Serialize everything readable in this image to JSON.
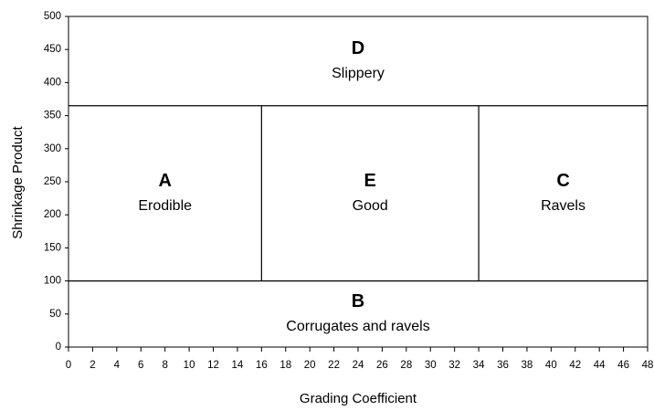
{
  "chart_data": {
    "type": "zones",
    "xlabel": "Grading Coefficient",
    "ylabel": "Shrinkage Product",
    "xlim": [
      0,
      48
    ],
    "ylim": [
      0,
      500
    ],
    "xticks": [
      0,
      2,
      4,
      6,
      8,
      10,
      12,
      14,
      16,
      18,
      20,
      22,
      24,
      26,
      28,
      30,
      32,
      34,
      36,
      38,
      40,
      42,
      44,
      46,
      48
    ],
    "yticks": [
      0,
      50,
      100,
      150,
      200,
      250,
      300,
      350,
      400,
      450,
      500
    ],
    "lines": [
      {
        "x": [
          0,
          48
        ],
        "y": [
          365,
          365
        ]
      },
      {
        "x": [
          0,
          48
        ],
        "y": [
          100,
          100
        ]
      },
      {
        "x": [
          16,
          16
        ],
        "y": [
          100,
          365
        ]
      },
      {
        "x": [
          34,
          34
        ],
        "y": [
          100,
          365
        ]
      }
    ],
    "zones": [
      {
        "letter": "D",
        "label": "Slippery",
        "x": [
          0,
          48
        ],
        "y": [
          365,
          500
        ]
      },
      {
        "letter": "A",
        "label": "Erodible",
        "x": [
          0,
          16
        ],
        "y": [
          100,
          365
        ]
      },
      {
        "letter": "E",
        "label": "Good",
        "x": [
          16,
          34
        ],
        "y": [
          100,
          365
        ]
      },
      {
        "letter": "C",
        "label": "Ravels",
        "x": [
          34,
          48
        ],
        "y": [
          100,
          365
        ]
      },
      {
        "letter": "B",
        "label": "Corrugates and ravels",
        "x": [
          0,
          48
        ],
        "y": [
          0,
          100
        ]
      }
    ]
  }
}
